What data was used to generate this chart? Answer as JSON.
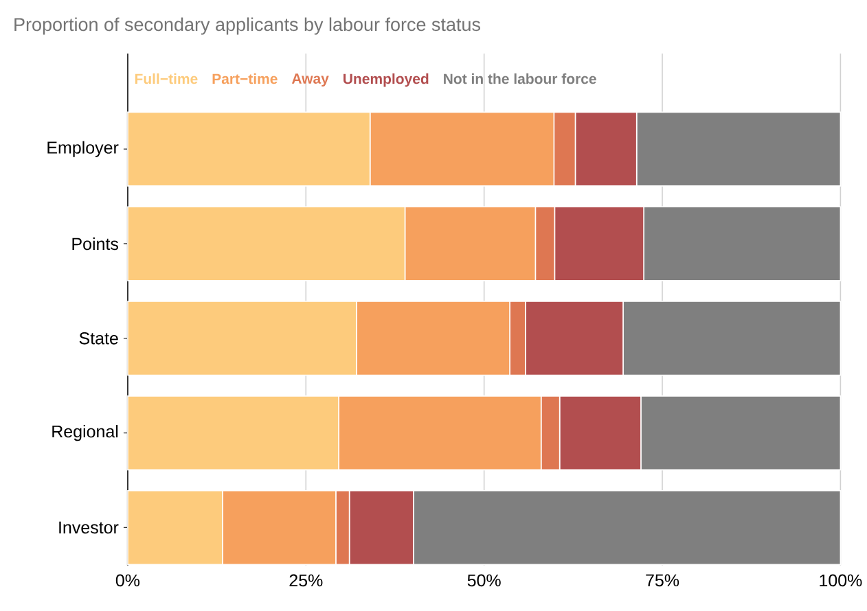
{
  "chart_data": {
    "type": "bar",
    "orientation": "horizontal",
    "stacked": true,
    "title": "Proportion of secondary applicants by labour force status",
    "categories": [
      "Employer",
      "Points",
      "State",
      "Regional",
      "Investor"
    ],
    "series": [
      {
        "name": "Full−time",
        "color": "#fdcb7c",
        "values": [
          34.0,
          38.9,
          32.1,
          29.6,
          13.3
        ]
      },
      {
        "name": "Part−time",
        "color": "#f6a05d",
        "values": [
          25.8,
          18.3,
          21.5,
          28.4,
          15.9
        ]
      },
      {
        "name": "Away",
        "color": "#de7752",
        "values": [
          3.0,
          2.7,
          2.2,
          2.6,
          1.9
        ]
      },
      {
        "name": "Unemployed",
        "color": "#b24e4f",
        "values": [
          8.6,
          12.5,
          13.7,
          11.4,
          9.0
        ]
      },
      {
        "name": "Not in the labour force",
        "color": "#7f7f7f",
        "values": [
          28.6,
          27.6,
          30.5,
          28.0,
          59.9
        ]
      }
    ],
    "xlim": [
      0,
      100
    ],
    "xticks": [
      {
        "value": 0,
        "label": "0%"
      },
      {
        "value": 25,
        "label": "25%"
      },
      {
        "value": 50,
        "label": "50%"
      },
      {
        "value": 75,
        "label": "75%"
      },
      {
        "value": 100,
        "label": "100%"
      }
    ],
    "grid": "x",
    "legend": "top"
  }
}
